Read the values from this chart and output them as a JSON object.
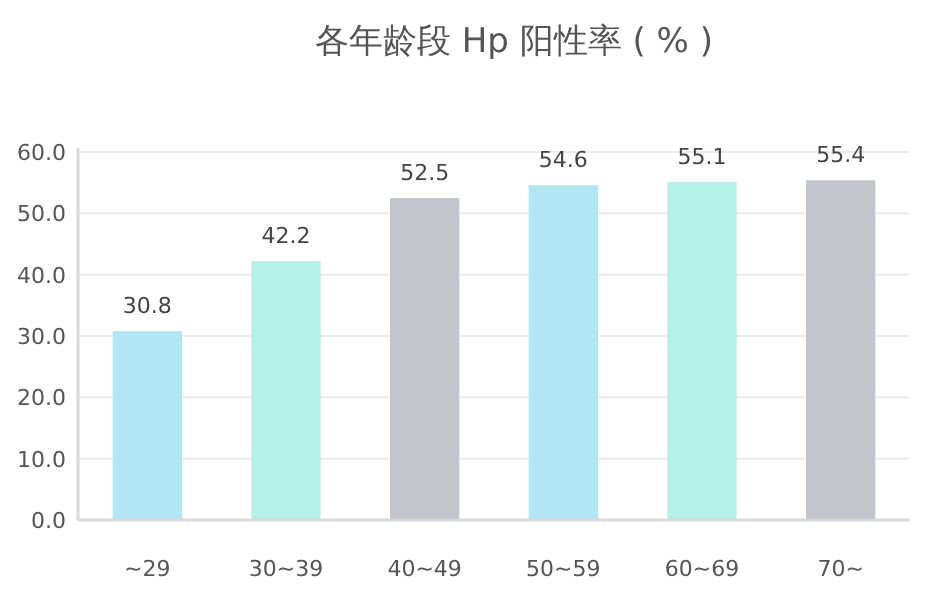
{
  "chart_data": {
    "type": "bar",
    "title": "各年龄段 Hp 阳性率 ( % )",
    "categories": [
      "~29",
      "30~39",
      "40~49",
      "50~59",
      "60~69",
      "70~"
    ],
    "values": [
      30.8,
      42.2,
      52.5,
      54.6,
      55.1,
      55.4
    ],
    "colors": [
      "#b3e6f5",
      "#b3f0e8",
      "#c3c5cd",
      "#b3e6f5",
      "#b3f0e8",
      "#c3c5cd"
    ],
    "data_labels": true,
    "grid": "y",
    "ylim": [
      0,
      60
    ],
    "yticks": [
      {
        "value": 0,
        "label": "0.0"
      },
      {
        "value": 10,
        "label": "10.0"
      },
      {
        "value": 20,
        "label": "20.0"
      },
      {
        "value": 30,
        "label": "30.0"
      },
      {
        "value": 40,
        "label": "40.0"
      },
      {
        "value": 50,
        "label": "50.0"
      },
      {
        "value": 60,
        "label": "60.0"
      }
    ]
  }
}
